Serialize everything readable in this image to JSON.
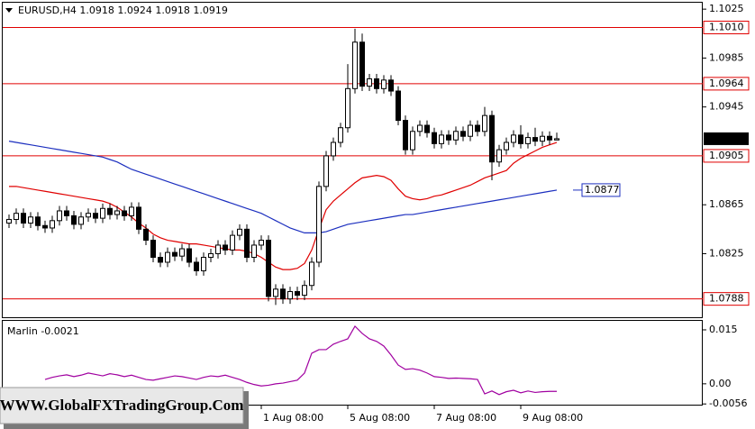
{
  "chart_data": [
    {
      "type": "candlestick",
      "title": "EURUSD,H4  1.0918 1.0924 1.0918 1.0919",
      "categories": [
        null,
        null,
        null,
        null,
        null,
        null,
        null,
        null,
        null,
        null,
        null,
        null,
        null,
        null,
        null,
        null,
        null,
        null,
        null,
        null,
        null,
        null,
        null,
        null,
        null,
        null,
        null,
        null,
        null,
        null,
        null,
        null,
        null,
        null,
        null,
        "1 Aug 08:00",
        null,
        null,
        null,
        null,
        null,
        null,
        null,
        null,
        null,
        null,
        null,
        "5 Aug 08:00",
        null,
        null,
        null,
        null,
        null,
        null,
        null,
        null,
        null,
        null,
        null,
        "7 Aug 08:00",
        null,
        null,
        null,
        null,
        null,
        null,
        null,
        null,
        null,
        null,
        null,
        "9 Aug 08:00",
        null,
        null,
        null,
        null,
        null
      ],
      "open": [
        1.085,
        1.0853,
        1.0858,
        1.085,
        1.0855,
        1.0848,
        1.0846,
        1.0852,
        1.086,
        1.0856,
        1.0849,
        1.0855,
        1.0858,
        1.0854,
        1.0862,
        1.0857,
        1.086,
        1.0856,
        1.0863,
        1.0845,
        1.0836,
        1.0822,
        1.0818,
        1.0826,
        1.0823,
        1.0829,
        1.0818,
        1.0811,
        1.0822,
        1.0825,
        1.0832,
        1.0828,
        1.084,
        1.0845,
        1.0822,
        1.0832,
        1.0836,
        1.079,
        1.0796,
        1.0788,
        1.0794,
        1.0791,
        1.0799,
        1.0818,
        1.088,
        1.0905,
        1.0916,
        1.0928,
        1.096,
        1.0998,
        1.0962,
        1.0968,
        1.096,
        1.0967,
        1.0958,
        1.0934,
        1.091,
        1.0925,
        1.093,
        1.0924,
        1.0915,
        1.0922,
        1.0918,
        1.0925,
        1.0921,
        1.093,
        1.0925,
        1.0938,
        1.09,
        1.091,
        1.0916,
        1.0922,
        1.0915,
        1.092,
        1.0917,
        1.0921,
        1.0918
      ],
      "high": [
        1.0857,
        1.0862,
        1.0862,
        1.0859,
        1.0859,
        1.0852,
        1.0856,
        1.0864,
        1.0864,
        1.086,
        1.0859,
        1.0862,
        1.0862,
        1.0866,
        1.0866,
        1.0864,
        1.0864,
        1.0867,
        1.0867,
        1.0849,
        1.084,
        1.0826,
        1.083,
        1.083,
        1.0833,
        1.0833,
        1.0822,
        1.0826,
        1.0829,
        1.0836,
        1.0836,
        1.0844,
        1.0849,
        1.0849,
        1.0836,
        1.084,
        1.084,
        1.08,
        1.08,
        1.0798,
        1.0798,
        1.0803,
        1.0822,
        1.0884,
        1.0909,
        1.092,
        1.0932,
        1.098,
        1.1009,
        1.1005,
        1.0972,
        1.0972,
        1.0971,
        1.0971,
        1.0962,
        1.0938,
        1.0929,
        1.0934,
        1.0934,
        1.0928,
        1.0926,
        1.0926,
        1.0929,
        1.0929,
        1.0934,
        1.0934,
        1.0945,
        1.0942,
        1.0914,
        1.092,
        1.0926,
        1.093,
        1.0924,
        1.0928,
        1.0925,
        1.0925,
        1.0924
      ],
      "low": [
        1.0846,
        1.0849,
        1.0846,
        1.0846,
        1.0844,
        1.0842,
        1.0842,
        1.0848,
        1.0852,
        1.0845,
        1.0845,
        1.0851,
        1.085,
        1.085,
        1.0853,
        1.0853,
        1.0852,
        1.0852,
        1.0841,
        1.0832,
        1.0818,
        1.0814,
        1.0814,
        1.0819,
        1.0819,
        1.0814,
        1.0807,
        1.0807,
        1.0818,
        1.0821,
        1.0824,
        1.0824,
        1.0836,
        1.0818,
        1.0818,
        1.0828,
        1.0786,
        1.0783,
        1.0784,
        1.0784,
        1.0787,
        1.0787,
        1.0795,
        1.0814,
        1.0876,
        1.0901,
        1.0912,
        1.0924,
        1.0956,
        1.0958,
        1.0958,
        1.0956,
        1.0956,
        1.0954,
        1.093,
        1.0906,
        1.0906,
        1.0921,
        1.092,
        1.0911,
        1.0911,
        1.0914,
        1.0914,
        1.0917,
        1.0917,
        1.0921,
        1.0921,
        1.0885,
        1.0896,
        1.0906,
        1.0912,
        1.0911,
        1.0911,
        1.0913,
        1.0913,
        1.0914,
        1.0918
      ],
      "close": [
        1.0853,
        1.0858,
        1.085,
        1.0855,
        1.0848,
        1.0846,
        1.0852,
        1.086,
        1.0856,
        1.0849,
        1.0855,
        1.0858,
        1.0854,
        1.0862,
        1.0857,
        1.086,
        1.0856,
        1.0863,
        1.0845,
        1.0836,
        1.0822,
        1.0818,
        1.0826,
        1.0823,
        1.0829,
        1.0818,
        1.0811,
        1.0822,
        1.0825,
        1.0832,
        1.0828,
        1.084,
        1.0845,
        1.0822,
        1.0832,
        1.0836,
        1.079,
        1.0796,
        1.0788,
        1.0794,
        1.0791,
        1.0799,
        1.0818,
        1.088,
        1.0905,
        1.0916,
        1.0928,
        1.096,
        1.0998,
        1.0962,
        1.0968,
        1.096,
        1.0967,
        1.0958,
        1.0934,
        1.091,
        1.0925,
        1.093,
        1.0924,
        1.0915,
        1.0922,
        1.0918,
        1.0925,
        1.0921,
        1.093,
        1.0925,
        1.0938,
        1.09,
        1.091,
        1.0916,
        1.0922,
        1.0915,
        1.092,
        1.0917,
        1.0921,
        1.0918,
        1.0919
      ],
      "series": [
        {
          "color": "#e00000",
          "values": [
            1.088,
            1.088,
            1.0879,
            1.0878,
            1.0877,
            1.0876,
            1.0875,
            1.0874,
            1.0873,
            1.0872,
            1.0871,
            1.087,
            1.0869,
            1.0868,
            1.0866,
            1.0863,
            1.0859,
            1.0855,
            1.085,
            1.0846,
            1.0841,
            1.0838,
            1.0836,
            1.0835,
            1.0834,
            1.0833,
            1.0833,
            1.0832,
            1.0831,
            1.083,
            1.0829,
            1.0828,
            1.0828,
            1.0827,
            1.0825,
            1.0822,
            1.0818,
            1.0814,
            1.0812,
            1.0812,
            1.0813,
            1.0817,
            1.0828,
            1.0845,
            1.0861,
            1.0868,
            1.0873,
            1.0878,
            1.0883,
            1.0887,
            1.0888,
            1.0889,
            1.0888,
            1.0885,
            1.0878,
            1.0872,
            1.087,
            1.0869,
            1.087,
            1.0872,
            1.0873,
            1.0875,
            1.0877,
            1.0879,
            1.0881,
            1.0884,
            1.0887,
            1.0889,
            1.0891,
            1.0893,
            1.0899,
            1.0903,
            1.0906,
            1.0909,
            1.0912,
            1.0914,
            1.0916
          ]
        },
        {
          "color": "#1c2fbf",
          "values": [
            1.0917,
            1.0916,
            1.0915,
            1.0914,
            1.0913,
            1.0912,
            1.0911,
            1.091,
            1.0909,
            1.0908,
            1.0907,
            1.0906,
            1.0905,
            1.0904,
            1.0902,
            1.09,
            1.0897,
            1.0894,
            1.0892,
            1.089,
            1.0888,
            1.0886,
            1.0884,
            1.0882,
            1.088,
            1.0878,
            1.0876,
            1.0874,
            1.0872,
            1.087,
            1.0868,
            1.0866,
            1.0864,
            1.0862,
            1.086,
            1.0858,
            1.0855,
            1.0852,
            1.0849,
            1.0846,
            1.0844,
            1.0842,
            1.0842,
            1.0842,
            1.0843,
            1.0845,
            1.0847,
            1.0849,
            1.085,
            1.0851,
            1.0852,
            1.0853,
            1.0854,
            1.0855,
            1.0856,
            1.0857,
            1.0857,
            1.0858,
            1.0859,
            1.086,
            1.0861,
            1.0862,
            1.0863,
            1.0864,
            1.0865,
            1.0866,
            1.0867,
            1.0868,
            1.0869,
            1.087,
            1.0871,
            1.0872,
            1.0873,
            1.0874,
            1.0875,
            1.0876,
            1.0877
          ]
        }
      ],
      "levels": [
        {
          "value": 1.101,
          "label": "1.1010"
        },
        1.0964,
        1.0905,
        1.0788
      ],
      "level_color": "#e00000",
      "ylim": [
        1.0773,
        1.1031
      ],
      "yticks": [
        1.1025,
        1.0985,
        1.0945,
        1.0865,
        1.0825
      ]
    },
    {
      "type": "line",
      "title": "Marlin -0.0021",
      "series": [
        {
          "color": "#a000a0",
          "values": [
            null,
            null,
            null,
            null,
            null,
            0.0012,
            0.0018,
            0.0022,
            0.0025,
            0.002,
            0.0024,
            0.003,
            0.0026,
            0.0022,
            0.0028,
            0.0025,
            0.002,
            0.0024,
            0.0018,
            0.0012,
            0.001,
            0.0014,
            0.0018,
            0.0022,
            0.002,
            0.0016,
            0.0012,
            0.0018,
            0.0022,
            0.002,
            0.0024,
            0.0018,
            0.0012,
            0.0004,
            -0.0002,
            -0.0006,
            -0.0004,
            0.0,
            0.0002,
            0.0006,
            0.001,
            0.003,
            0.0085,
            0.0095,
            0.0095,
            0.011,
            0.0118,
            0.0125,
            0.016,
            0.014,
            0.0125,
            0.0118,
            0.0105,
            0.008,
            0.0052,
            0.004,
            0.0042,
            0.0038,
            0.003,
            0.002,
            0.0018,
            0.0015,
            0.0016,
            0.0015,
            0.0014,
            0.0012,
            -0.0028,
            -0.002,
            -0.003,
            -0.0022,
            -0.0018,
            -0.0025,
            -0.002,
            -0.0024,
            -0.0022,
            -0.0021,
            -0.0021
          ]
        }
      ],
      "ylim": [
        -0.0058,
        0.0175
      ],
      "yticks": [
        0.015,
        {
          "value": 0,
          "label": "0.00"
        },
        -0.0056
      ]
    }
  ],
  "watermark": "WWW.GlobalFXTradingGroup.Com"
}
